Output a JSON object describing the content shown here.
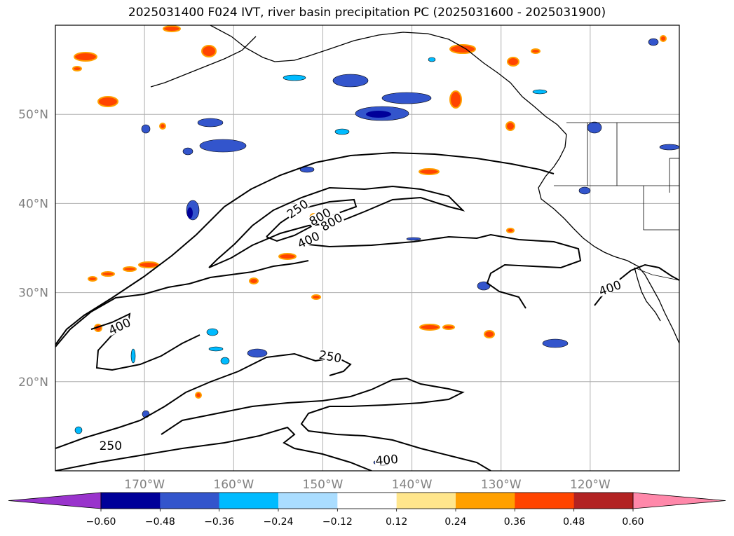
{
  "title": "2025031400 F024 IVT, river basin precipitation PC (2025031600 - 2025031900)",
  "map": {
    "lat_range": [
      10,
      60
    ],
    "lon_range": [
      -180,
      -110
    ],
    "lat_ticks": [
      {
        "value": 20,
        "label": "20°N"
      },
      {
        "value": 30,
        "label": "30°N"
      },
      {
        "value": 40,
        "label": "40°N"
      },
      {
        "value": 50,
        "label": "50°N"
      }
    ],
    "lon_ticks": [
      {
        "value": -170,
        "label": "170°W"
      },
      {
        "value": -160,
        "label": "160°W"
      },
      {
        "value": -150,
        "label": "150°W"
      },
      {
        "value": -140,
        "label": "140°W"
      },
      {
        "value": -130,
        "label": "130°W"
      },
      {
        "value": -120,
        "label": "120°W"
      }
    ],
    "gridlines": true,
    "ivt_contour_labels": [
      {
        "text": "250",
        "lon": -173.8,
        "lat": 12.6,
        "rotation": 0
      },
      {
        "text": "250",
        "lon": -149.2,
        "lat": 22.6,
        "rotation": 10
      },
      {
        "text": "250",
        "lon": -152.7,
        "lat": 39.2,
        "rotation": -35
      },
      {
        "text": "400",
        "lon": -172.7,
        "lat": 26.0,
        "rotation": -25
      },
      {
        "text": "400",
        "lon": -151.5,
        "lat": 35.7,
        "rotation": -25
      },
      {
        "text": "400",
        "lon": -117.7,
        "lat": 30.3,
        "rotation": -20
      },
      {
        "text": "400",
        "lon": -142.8,
        "lat": 11.0,
        "rotation": -5
      },
      {
        "text": "800",
        "lon": -150.2,
        "lat": 38.3,
        "rotation": -30
      },
      {
        "text": "800",
        "lon": -148.9,
        "lat": 37.7,
        "rotation": -30
      }
    ]
  },
  "colorbar": {
    "ticks": [
      "−0.60",
      "−0.48",
      "−0.36",
      "−0.24",
      "−0.12",
      "0.12",
      "0.24",
      "0.36",
      "0.48",
      "0.60"
    ],
    "colors": {
      "under": "#9933cc",
      "bins": [
        "#000099",
        "#3355cc",
        "#00bbff",
        "#aaddff",
        "#ffffff",
        "#ffe68c",
        "#ffa000",
        "#ff4400",
        "#b22222"
      ],
      "over": "#ff88aa"
    }
  }
}
